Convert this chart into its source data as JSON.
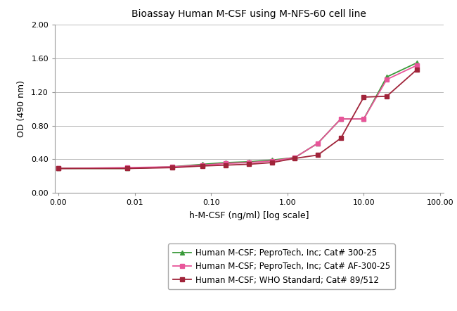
{
  "title": "Bioassay Human M-CSF using M-NFS-60 cell line",
  "xlabel": "h-M-CSF (ng/ml) [log scale]",
  "ylabel": "OD (490 nm)",
  "ylim": [
    0.0,
    2.0
  ],
  "yticks": [
    0.0,
    0.4,
    0.8,
    1.2,
    1.6,
    2.0
  ],
  "xtick_positions": [
    0.001,
    0.01,
    0.1,
    1.0,
    10.0,
    100.0
  ],
  "xtick_labels": [
    "0.00",
    "0.01",
    "0.10",
    "1.00",
    "10.00",
    "100.00"
  ],
  "series": [
    {
      "label": "Human M-CSF; PeproTech, Inc; Cat# 300-25",
      "color": "#3a9a3a",
      "marker": "^",
      "markersize": 5,
      "linewidth": 1.3,
      "x": [
        0.001,
        0.008,
        0.031,
        0.078,
        0.156,
        0.313,
        0.625,
        1.25,
        2.5,
        5.0,
        10.0,
        20.0,
        50.0
      ],
      "y": [
        0.29,
        0.29,
        0.31,
        0.34,
        0.36,
        0.37,
        0.39,
        0.42,
        0.59,
        0.88,
        0.88,
        1.38,
        1.55
      ]
    },
    {
      "label": "Human M-CSF; PeproTech, Inc; Cat# AF-300-25",
      "color": "#e8559a",
      "marker": "s",
      "markersize": 5,
      "linewidth": 1.3,
      "x": [
        0.001,
        0.008,
        0.031,
        0.078,
        0.156,
        0.313,
        0.625,
        1.25,
        2.5,
        5.0,
        10.0,
        20.0,
        50.0
      ],
      "y": [
        0.29,
        0.3,
        0.31,
        0.33,
        0.35,
        0.36,
        0.38,
        0.42,
        0.59,
        0.88,
        0.88,
        1.35,
        1.52
      ]
    },
    {
      "label": "Human M-CSF; WHO Standard; Cat# 89/512",
      "color": "#a0243a",
      "marker": "s",
      "markersize": 5,
      "linewidth": 1.3,
      "x": [
        0.001,
        0.008,
        0.031,
        0.078,
        0.156,
        0.313,
        0.625,
        1.25,
        2.5,
        5.0,
        10.0,
        20.0,
        50.0
      ],
      "y": [
        0.29,
        0.29,
        0.3,
        0.32,
        0.33,
        0.34,
        0.36,
        0.41,
        0.45,
        0.65,
        1.14,
        1.15,
        1.47
      ]
    }
  ],
  "background_color": "#ffffff",
  "grid_color": "#bbbbbb",
  "title_fontsize": 10,
  "label_fontsize": 9,
  "tick_fontsize": 8,
  "legend_fontsize": 8.5
}
